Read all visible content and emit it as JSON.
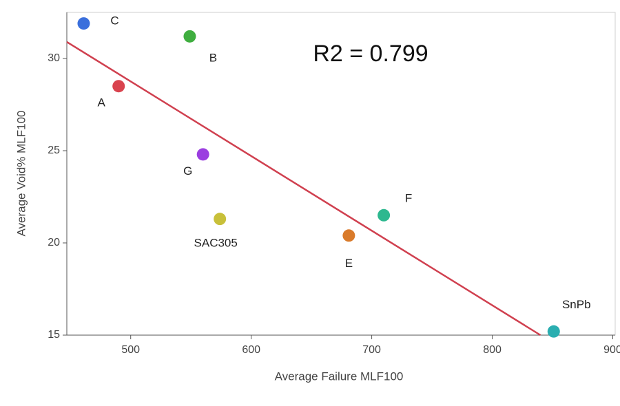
{
  "chart_data": {
    "type": "scatter",
    "x_label": "Average Failure MLF100",
    "y_label": "Average Void% MLF100",
    "annotation": "R2 = 0.799",
    "categories": [
      "C",
      "B",
      "A",
      "G",
      "SAC305",
      "E",
      "F",
      "SnPb"
    ],
    "x": [
      461,
      549,
      490,
      560,
      574,
      681,
      710,
      851
    ],
    "values": [
      31.9,
      31.2,
      28.5,
      24.8,
      21.3,
      20.4,
      21.5,
      15.2
    ],
    "colors": [
      "#3a6fdc",
      "#3fae3f",
      "#d9434e",
      "#9b3ee0",
      "#c8c03a",
      "#d97a2a",
      "#2db88f",
      "#2aaeb0"
    ],
    "trend_line": {
      "color": "#d0404f",
      "x": [
        447,
        840
      ],
      "y": [
        30.9,
        15
      ]
    },
    "xlim": [
      447,
      902
    ],
    "xticks": [
      500,
      600,
      700,
      800,
      900
    ],
    "ylim": [
      15,
      32.5
    ],
    "yticks": [
      15,
      20,
      25,
      30
    ]
  }
}
